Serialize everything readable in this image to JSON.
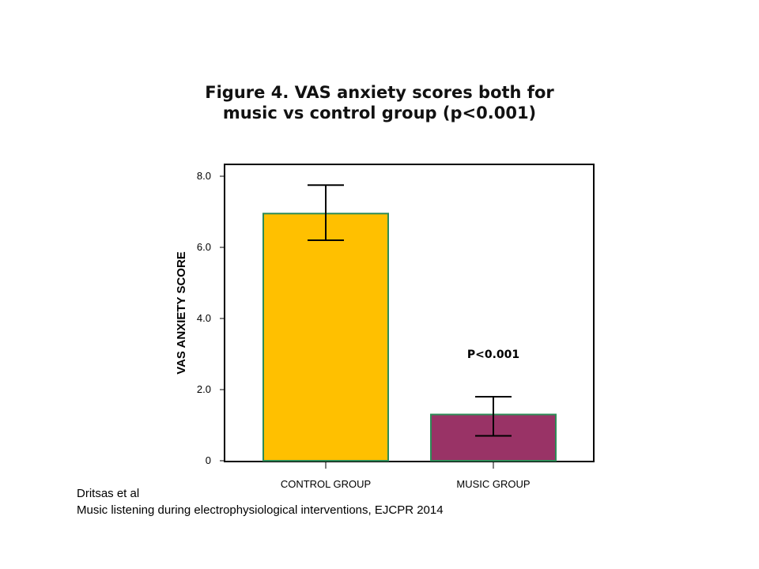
{
  "title": {
    "line1": "Figure 4. VAS anxiety scores both for",
    "line2": "music vs control group (p<0.001)"
  },
  "chart_data": {
    "type": "bar",
    "categories": [
      "CONTROL GROUP",
      "MUSIC GROUP"
    ],
    "values": [
      6.95,
      1.3
    ],
    "error_bars": [
      {
        "low": 6.2,
        "high": 7.75
      },
      {
        "low": 0.7,
        "high": 1.8
      }
    ],
    "colors": [
      "#FFC000",
      "#993366"
    ],
    "bar_edge_color": "#2E8B57",
    "ylabel": "VAS ANXIETY SCORE",
    "xlabel": "",
    "ylim": [
      0,
      8.0
    ],
    "yticks": [
      {
        "value": 0,
        "label": "0"
      },
      {
        "value": 2.0,
        "label": "2.0"
      },
      {
        "value": 4.0,
        "label": "4.0"
      },
      {
        "value": 6.0,
        "label": "6.0"
      },
      {
        "value": 8.0,
        "label": "8.0"
      }
    ],
    "annotation": {
      "text": "P<0.001",
      "category_index": 1,
      "y": 3.0
    },
    "grid": false
  },
  "caption": {
    "line1": "Dritsas et al",
    "line2": "Music listening during electrophysiological interventions, EJCPR 2014"
  }
}
